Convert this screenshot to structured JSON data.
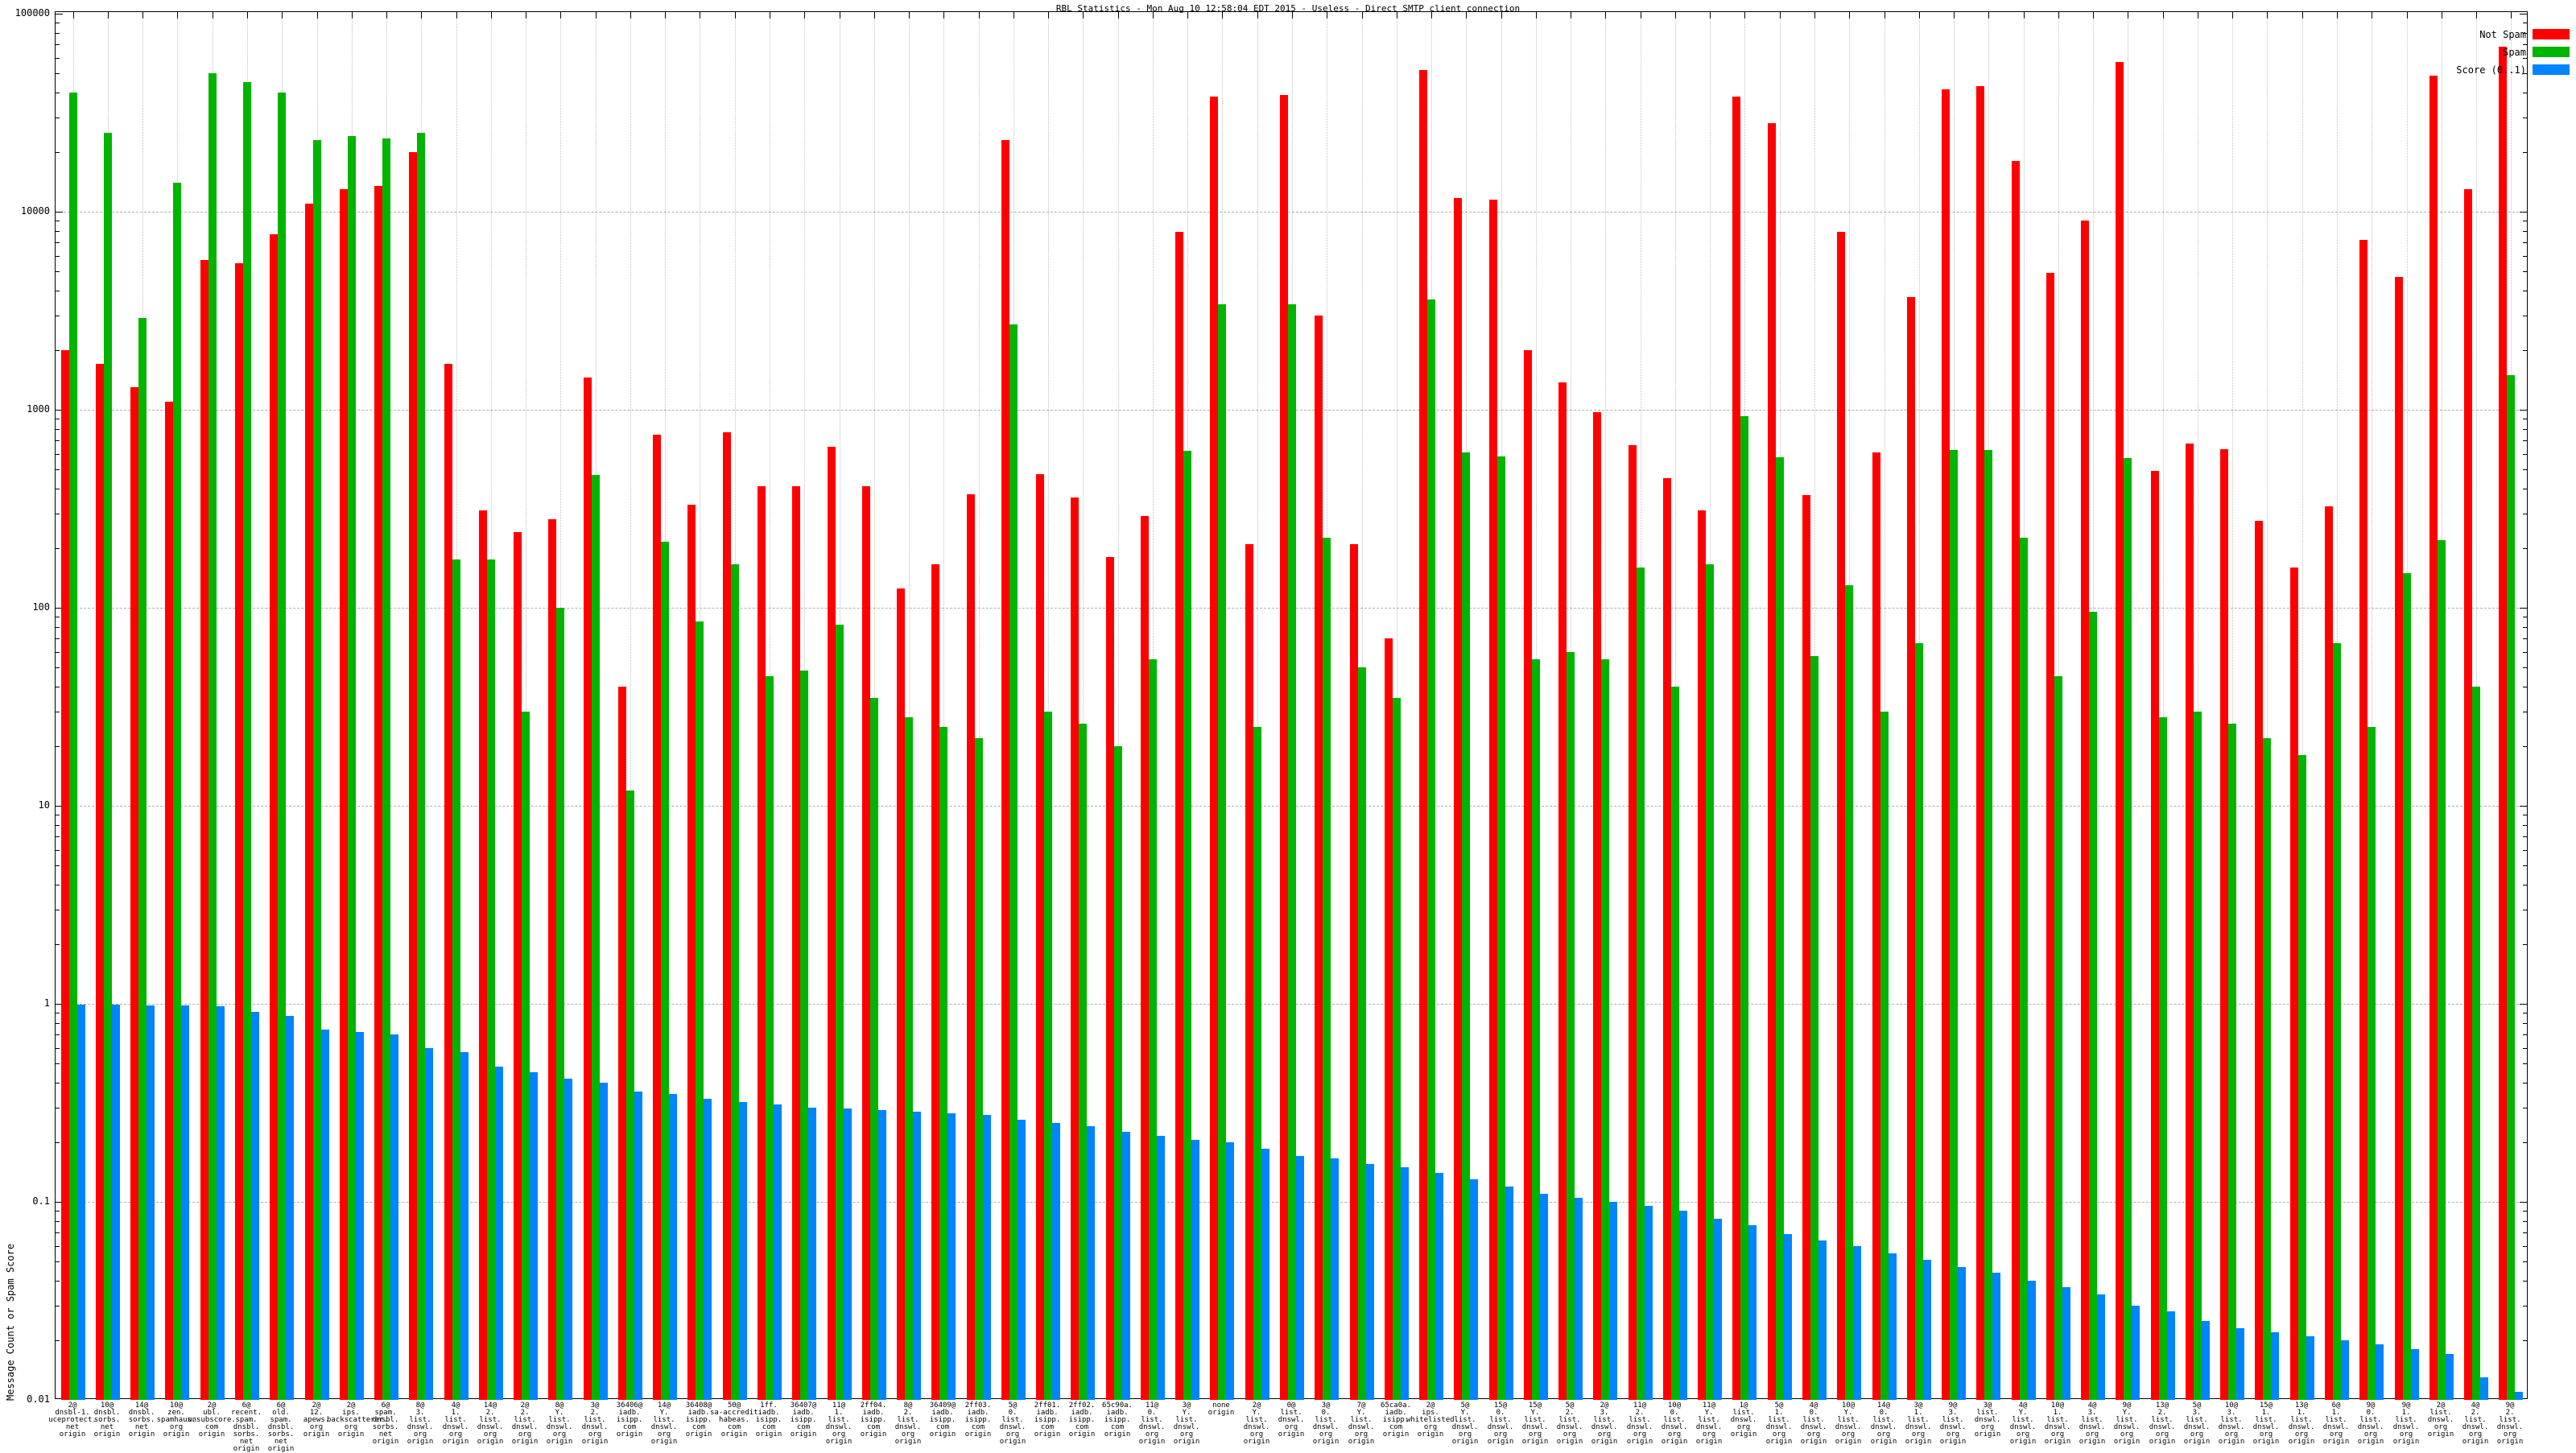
{
  "title": "RBL Statistics - Mon Aug 10 12:58:04 EDT 2015 - Useless - Direct SMTP client connection",
  "ylabel": "Message Count or Spam Score",
  "legend": [
    {
      "label": "Not Spam",
      "color": "#ff0000"
    },
    {
      "label": "Spam",
      "color": "#00b400"
    },
    {
      "label": "Score (0..1)",
      "color": "#0084ff"
    }
  ],
  "colors": {
    "not_spam": "#ff0000",
    "spam": "#00b400",
    "score": "#0084ff",
    "grid": "#b0b0b0"
  },
  "chart_data": {
    "type": "bar",
    "scale": "log",
    "title": "RBL Statistics - Mon Aug 10 12:58:04 EDT 2015 - Useless - Direct SMTP client connection",
    "xlabel": "",
    "ylabel": "Message Count or Spam Score",
    "ylim": [
      0.01,
      100000
    ],
    "ytick_labels": [
      "100000",
      "10000",
      "1000",
      "100",
      "10",
      "1",
      "0.1",
      "0.01"
    ],
    "grid": true,
    "legend_position": "top-right",
    "categories": [
      "2@\ndnsbl-1.\nuceprotect.\nnet\norigin",
      "10@\ndnsbl.\nsorbs.\nnet\norigin",
      "14@\ndnsbl.\nsorbs.\nnet\norigin",
      "10@\nzen.\nspamhaus.\norg\norigin",
      "2@\nubl.\nunsubscore.\ncom\norigin",
      "6@\nrecent.\nspam.\ndnsbl.\nsorbs.\nnet\norigin",
      "6@\nold.\nspam.\ndnsbl.\nsorbs.\nnet\norigin",
      "2@\n12.\napews.\norg\norigin",
      "2@\nips.\nbackscatterer.\norg\norigin",
      "6@\nspam.\ndnsbl.\nsorbs.\nnet\norigin",
      "8@\n3.\nlist.\ndnswl.\norg\norigin",
      "4@\n1.\nlist.\ndnswl.\norg\norigin",
      "14@\n2.\nlist.\ndnswl.\norg\norigin",
      "2@\n2.\nlist.\ndnswl.\norg\norigin",
      "8@\nY.\nlist.\ndnswl.\norg\norigin",
      "3@\n2.\nlist.\ndnswl.\norg\norigin",
      "36406@\niadb.\nisipp.\ncom\norigin",
      "14@\nY.\nlist.\ndnswl.\norg\norigin",
      "36408@\niadb.\nisipp.\ncom\norigin",
      "50@\nsa-accredit.\nhabeas.\ncom\norigin",
      "1ff.\niadb.\nisipp.\ncom\norigin",
      "36407@\niadb.\nisipp.\ncom\norigin",
      "11@\n1.\nlist.\ndnswl.\norg\norigin",
      "2ff04.\niadb.\nisipp.\ncom\norigin",
      "8@\n2.\nlist.\ndnswl.\norg\norigin",
      "36409@\niadb.\nisipp.\ncom\norigin",
      "2ff03.\niadb.\nisipp.\ncom\norigin",
      "5@\n0.\nlist.\ndnswl.\norg\norigin",
      "2ff01.\niadb.\nisipp.\ncom\norigin",
      "2ff02.\niadb.\nisipp.\ncom\norigin",
      "65c90a.\niadb.\nisipp.\ncom\norigin",
      "11@\n0.\nlist.\ndnswl.\norg\norigin",
      "3@\nY.\nlist.\ndnswl.\norg\norigin",
      "none\norigin",
      "2@\nY.\nlist.\ndnswl.\norg\norigin",
      "0@\nlist.\ndnswl.\norg\norigin",
      "3@\n0.\nlist.\ndnswl.\norg\norigin",
      "7@\nY.\nlist.\ndnswl.\norg\norigin",
      "65ca0a.\niadb.\nisipp.\ncom\norigin",
      "2@\nips.\nwhitelisted.\norg\norigin",
      "5@\nY.\nlist.\ndnswl.\norg\norigin",
      "15@\n0.\nlist.\ndnswl.\norg\norigin",
      "15@\nY.\nlist.\ndnswl.\norg\norigin",
      "5@\n2.\nlist.\ndnswl.\norg\norigin",
      "2@\n3.\nlist.\ndnswl.\norg\norigin",
      "11@\n2.\nlist.\ndnswl.\norg\norigin",
      "10@\n0.\nlist.\ndnswl.\norg\norigin",
      "11@\nY.\nlist.\ndnswl.\norg\norigin",
      "1@\nlist.\ndnswl.\norg\norigin",
      "5@\n1.\nlist.\ndnswl.\norg\norigin",
      "4@\n0.\nlist.\ndnswl.\norg\norigin",
      "10@\nY.\nlist.\ndnswl.\norg\norigin",
      "14@\n0.\nlist.\ndnswl.\norg\norigin",
      "3@\n1.\nlist.\ndnswl.\norg\norigin",
      "9@\n3.\nlist.\ndnswl.\norg\norigin",
      "3@\nlist.\ndnswl.\norg\norigin",
      "4@\nY.\nlist.\ndnswl.\norg\norigin",
      "10@\n1.\nlist.\ndnswl.\norg\norigin",
      "4@\n3.\nlist.\ndnswl.\norg\norigin",
      "9@\nY.\nlist.\ndnswl.\norg\norigin",
      "13@\n2.\nlist.\ndnswl.\norg\norigin",
      "5@\n3.\nlist.\ndnswl.\norg\norigin",
      "10@\n3.\nlist.\ndnswl.\norg\norigin",
      "15@\n1.\nlist.\ndnswl.\norg\norigin",
      "13@\n1.\nlist.\ndnswl.\norg\norigin",
      "6@\n1.\nlist.\ndnswl.\norg\norigin",
      "9@\n0.\nlist.\ndnswl.\norg\norigin",
      "9@\n1.\nlist.\ndnswl.\norg\norigin",
      "2@\nlist.\ndnswl.\norg\norigin",
      "4@\n2.\nlist.\ndnswl.\norg\norigin",
      "9@\n2.\nlist.\ndnswl.\norg\norigin"
    ],
    "series": [
      {
        "name": "Not Spam",
        "color": "#ff0000",
        "values": [
          2000,
          1700,
          1300,
          1100,
          5700,
          5500,
          7700,
          11000,
          13000,
          13500,
          20000,
          1700,
          310,
          240,
          280,
          1450,
          40,
          750,
          330,
          770,
          410,
          410,
          650,
          410,
          125,
          165,
          375,
          23000,
          475,
          360,
          180,
          290,
          7900,
          38000,
          210,
          39000,
          3000,
          210,
          70,
          52000,
          11700,
          11500,
          2000,
          1380,
          970,
          660,
          450,
          310,
          38000,
          28000,
          370,
          7900,
          610,
          3700,
          41500,
          43000,
          18000,
          4900,
          9000,
          57000,
          490,
          675,
          630,
          275,
          160,
          325,
          7200,
          4700,
          48500,
          13000,
          68000
        ]
      },
      {
        "name": "Spam",
        "color": "#00b400",
        "values": [
          40000,
          25000,
          2900,
          14000,
          50000,
          45000,
          40000,
          23000,
          24000,
          23500,
          25000,
          175,
          175,
          30,
          100,
          470,
          12,
          215,
          85,
          165,
          45,
          48,
          82,
          35,
          28,
          25,
          22,
          2700,
          30,
          26,
          20,
          55,
          620,
          3400,
          25,
          3400,
          225,
          50,
          35,
          3600,
          610,
          580,
          55,
          60,
          55,
          160,
          40,
          165,
          930,
          575,
          57,
          130,
          30,
          66,
          625,
          625,
          225,
          45,
          95,
          570,
          28,
          30,
          26,
          22,
          18,
          66,
          25,
          150,
          220,
          40,
          1500
        ]
      },
      {
        "name": "Score (0..1)",
        "color": "#0084ff",
        "values": [
          0.99,
          0.99,
          0.98,
          0.98,
          0.97,
          0.91,
          0.87,
          0.74,
          0.72,
          0.7,
          0.6,
          0.57,
          0.48,
          0.45,
          0.42,
          0.4,
          0.36,
          0.35,
          0.33,
          0.32,
          0.31,
          0.3,
          0.295,
          0.29,
          0.285,
          0.28,
          0.275,
          0.26,
          0.25,
          0.24,
          0.225,
          0.215,
          0.205,
          0.2,
          0.185,
          0.17,
          0.165,
          0.155,
          0.15,
          0.14,
          0.13,
          0.12,
          0.11,
          0.105,
          0.1,
          0.095,
          0.09,
          0.082,
          0.076,
          0.069,
          0.064,
          0.06,
          0.055,
          0.051,
          0.047,
          0.044,
          0.04,
          0.037,
          0.034,
          0.03,
          0.028,
          0.025,
          0.023,
          0.022,
          0.021,
          0.02,
          0.019,
          0.018,
          0.017,
          0.013,
          0.011
        ]
      }
    ]
  }
}
